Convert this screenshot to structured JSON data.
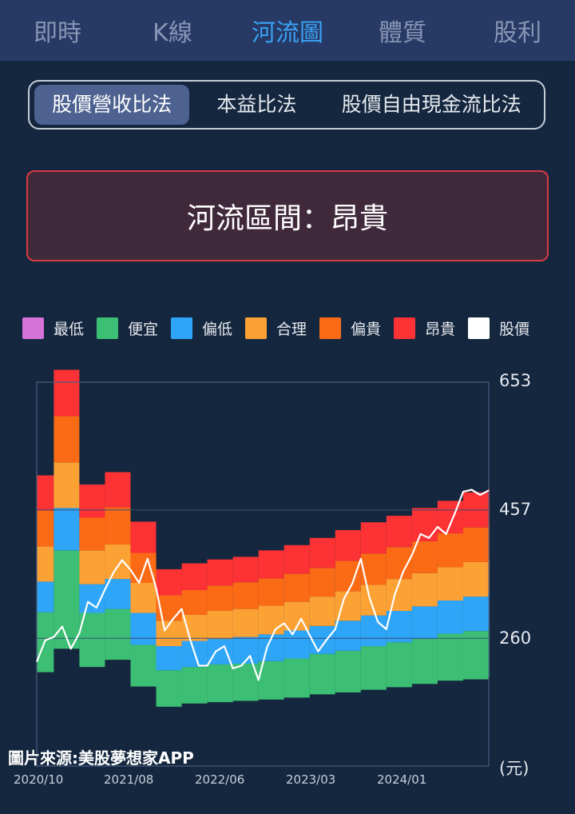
{
  "tabs": [
    {
      "label": "即時",
      "active": false
    },
    {
      "label": "K線",
      "active": false
    },
    {
      "label": "河流圖",
      "active": true
    },
    {
      "label": "體質",
      "active": false
    },
    {
      "label": "股利",
      "active": false
    }
  ],
  "methods": [
    {
      "label": "股價營收比法",
      "active": true
    },
    {
      "label": "本益比法",
      "active": false
    },
    {
      "label": "股價自由現金流比法",
      "active": false
    }
  ],
  "zone_text": "河流區間：昂貴",
  "legend": [
    {
      "label": "最低",
      "color": "#d772d8"
    },
    {
      "label": "便宜",
      "color": "#3cbf74"
    },
    {
      "label": "偏低",
      "color": "#2ea5f7"
    },
    {
      "label": "合理",
      "color": "#fca235"
    },
    {
      "label": "偏貴",
      "color": "#fb6b16"
    },
    {
      "label": "昂貴",
      "color": "#fc3234"
    },
    {
      "label": "股價",
      "color": "#ffffff"
    }
  ],
  "y_labels": {
    "top": "653",
    "mid": "457",
    "low": "260",
    "unit": "(元)"
  },
  "x_labels": [
    "2020/10",
    "2021/08",
    "2022/06",
    "2023/03",
    "2024/01"
  ],
  "source_text": "圖片來源:美股夢想家APP",
  "chart_data": {
    "type": "area",
    "ylim": [
      64,
      653
    ],
    "xlim": [
      "2020/10",
      "2025/03"
    ],
    "y_ticks": [
      260,
      457,
      653
    ],
    "band_colors": {
      "cheap": "#3cbf74",
      "low": "#2ea5f7",
      "fair": "#fca235",
      "high": "#fb6b16",
      "expensive": "#fc3234"
    },
    "bands": [
      {
        "x": "2020/10",
        "b0": 208,
        "b1": 300,
        "b2": 347,
        "b3": 401,
        "b4": 456,
        "b5": 510
      },
      {
        "x": "2020/12",
        "b0": 244,
        "b1": 395,
        "b2": 460,
        "b3": 530,
        "b4": 601,
        "b5": 672
      },
      {
        "x": "2021/03",
        "b0": 216,
        "b1": 299,
        "b2": 343,
        "b3": 395,
        "b4": 445,
        "b5": 496
      },
      {
        "x": "2021/06",
        "b0": 227,
        "b1": 305,
        "b2": 351,
        "b3": 404,
        "b4": 461,
        "b5": 515
      },
      {
        "x": "2021/09",
        "b0": 186,
        "b1": 250,
        "b2": 299,
        "b3": 345,
        "b4": 391,
        "b5": 439
      },
      {
        "x": "2021/12",
        "b0": 155,
        "b1": 211,
        "b2": 248,
        "b3": 287,
        "b4": 326,
        "b5": 366
      },
      {
        "x": "2022/03",
        "b0": 160,
        "b1": 216,
        "b2": 256,
        "b3": 296,
        "b4": 334,
        "b5": 375
      },
      {
        "x": "2022/06",
        "b0": 162,
        "b1": 220,
        "b2": 259,
        "b3": 302,
        "b4": 341,
        "b5": 381
      },
      {
        "x": "2022/09",
        "b0": 164,
        "b1": 221,
        "b2": 262,
        "b3": 305,
        "b4": 346,
        "b5": 385
      },
      {
        "x": "2022/12",
        "b0": 166,
        "b1": 225,
        "b2": 266,
        "b3": 310,
        "b4": 352,
        "b5": 395
      },
      {
        "x": "2023/03",
        "b0": 169,
        "b1": 229,
        "b2": 272,
        "b3": 316,
        "b4": 359,
        "b5": 403
      },
      {
        "x": "2023/06",
        "b0": 174,
        "b1": 236,
        "b2": 279,
        "b3": 324,
        "b4": 368,
        "b5": 414
      },
      {
        "x": "2023/09",
        "b0": 177,
        "b1": 241,
        "b2": 287,
        "b3": 332,
        "b4": 379,
        "b5": 426
      },
      {
        "x": "2023/12",
        "b0": 181,
        "b1": 248,
        "b2": 295,
        "b3": 342,
        "b4": 390,
        "b5": 438
      },
      {
        "x": "2024/03",
        "b0": 185,
        "b1": 254,
        "b2": 302,
        "b3": 351,
        "b4": 400,
        "b5": 448
      },
      {
        "x": "2024/06",
        "b0": 190,
        "b1": 259,
        "b2": 309,
        "b3": 360,
        "b4": 409,
        "b5": 460
      },
      {
        "x": "2024/09",
        "b0": 195,
        "b1": 267,
        "b2": 318,
        "b3": 369,
        "b4": 421,
        "b5": 471
      },
      {
        "x": "2024/12",
        "b0": 197,
        "b1": 271,
        "b2": 324,
        "b3": 377,
        "b4": 430,
        "b5": 484
      },
      {
        "x": "2025/03",
        "b0": 201,
        "b1": 276,
        "b2": 330,
        "b3": 383,
        "b4": 436,
        "b5": 490
      }
    ],
    "price": [
      {
        "x": "2020/10",
        "y": 224
      },
      {
        "x": "2020/11",
        "y": 257
      },
      {
        "x": "2020/12",
        "y": 262
      },
      {
        "x": "2021/01",
        "y": 278
      },
      {
        "x": "2021/02",
        "y": 244
      },
      {
        "x": "2021/03",
        "y": 268
      },
      {
        "x": "2021/04",
        "y": 316
      },
      {
        "x": "2021/05",
        "y": 307
      },
      {
        "x": "2021/06",
        "y": 335
      },
      {
        "x": "2021/07",
        "y": 361
      },
      {
        "x": "2021/08",
        "y": 380
      },
      {
        "x": "2021/09",
        "y": 365
      },
      {
        "x": "2021/10",
        "y": 345
      },
      {
        "x": "2021/11",
        "y": 382
      },
      {
        "x": "2021/12",
        "y": 337
      },
      {
        "x": "2022/01",
        "y": 272
      },
      {
        "x": "2022/02",
        "y": 290
      },
      {
        "x": "2022/03",
        "y": 305
      },
      {
        "x": "2022/04",
        "y": 258
      },
      {
        "x": "2022/05",
        "y": 218
      },
      {
        "x": "2022/06",
        "y": 218
      },
      {
        "x": "2022/07",
        "y": 240
      },
      {
        "x": "2022/08",
        "y": 248
      },
      {
        "x": "2022/09",
        "y": 214
      },
      {
        "x": "2022/10",
        "y": 218
      },
      {
        "x": "2022/11",
        "y": 233
      },
      {
        "x": "2022/12",
        "y": 196
      },
      {
        "x": "2023/01",
        "y": 246
      },
      {
        "x": "2023/02",
        "y": 274
      },
      {
        "x": "2023/03",
        "y": 283
      },
      {
        "x": "2023/04",
        "y": 266
      },
      {
        "x": "2023/05",
        "y": 290
      },
      {
        "x": "2023/06",
        "y": 265
      },
      {
        "x": "2023/07",
        "y": 240
      },
      {
        "x": "2023/08",
        "y": 258
      },
      {
        "x": "2023/09",
        "y": 274
      },
      {
        "x": "2023/10",
        "y": 320
      },
      {
        "x": "2023/11",
        "y": 344
      },
      {
        "x": "2023/12",
        "y": 382
      },
      {
        "x": "2024/01",
        "y": 323
      },
      {
        "x": "2024/02",
        "y": 285
      },
      {
        "x": "2024/03",
        "y": 274
      },
      {
        "x": "2024/04",
        "y": 328
      },
      {
        "x": "2024/05",
        "y": 363
      },
      {
        "x": "2024/06",
        "y": 388
      },
      {
        "x": "2024/07",
        "y": 420
      },
      {
        "x": "2024/08",
        "y": 414
      },
      {
        "x": "2024/09",
        "y": 431
      },
      {
        "x": "2024/10",
        "y": 420
      },
      {
        "x": "2024/11",
        "y": 451
      },
      {
        "x": "2024/12",
        "y": 485
      },
      {
        "x": "2025/01",
        "y": 488
      },
      {
        "x": "2025/02",
        "y": 480
      },
      {
        "x": "2025/03",
        "y": 487
      }
    ]
  }
}
